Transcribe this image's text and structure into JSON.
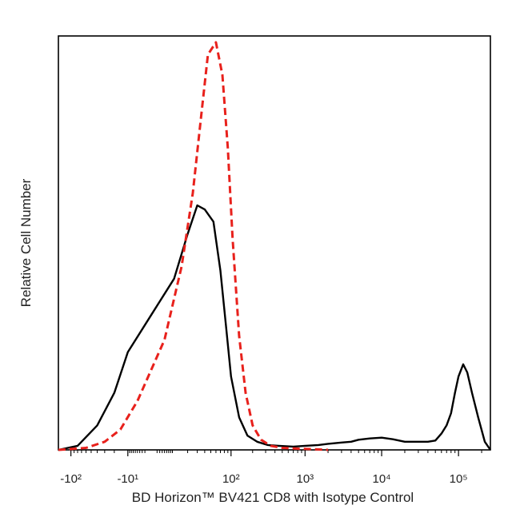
{
  "chart_data": {
    "type": "line",
    "title": "",
    "xlabel": "BD Horizon™ BV421 CD8 with Isotype Control",
    "ylabel": "Relative Cell Number",
    "x_scale": "biexponential",
    "tick_labels": [
      {
        "label": "-10²",
        "value": -100
      },
      {
        "label": "-10¹",
        "value": -10
      },
      {
        "label": "10²",
        "value": 100
      },
      {
        "label": "10³",
        "value": 1000
      },
      {
        "label": "10⁴",
        "value": 10000
      },
      {
        "label": "10⁵",
        "value": 100000
      }
    ],
    "xlim": [
      -150,
      260000
    ],
    "ylim": [
      0,
      100
    ],
    "grid": false,
    "legend": "none",
    "series": [
      {
        "color": "#000000",
        "dash": "solid",
        "x": [
          -150,
          -80,
          -40,
          -20,
          -10,
          0,
          10,
          20,
          30,
          40,
          55,
          70,
          85,
          100,
          130,
          170,
          230,
          320,
          450,
          700,
          1000,
          1500,
          2000,
          3000,
          4000,
          5000,
          7000,
          10000,
          14000,
          20000,
          30000,
          40000,
          50000,
          60000,
          70000,
          80000,
          90000,
          100000,
          115000,
          130000,
          150000,
          180000,
          220000,
          260000
        ],
        "y": [
          0,
          1,
          6,
          14,
          24,
          33,
          42,
          53,
          60,
          59,
          56,
          44,
          30,
          18,
          8,
          3.5,
          2,
          1.2,
          1,
          0.8,
          1,
          1.2,
          1.5,
          1.8,
          2,
          2.5,
          2.8,
          3,
          2.6,
          2,
          2,
          2,
          2.3,
          4,
          6,
          9,
          14,
          18,
          21,
          19,
          14,
          8,
          2,
          0
        ]
      },
      {
        "color": "#e8211c",
        "dash": "dashed",
        "x": [
          -150,
          -60,
          -30,
          -15,
          -5,
          5,
          15,
          25,
          35,
          45,
          60,
          75,
          90,
          105,
          130,
          160,
          200,
          260,
          350,
          500,
          800,
          1200,
          2000
        ],
        "y": [
          0,
          0.5,
          2,
          5,
          12,
          27,
          45,
          63,
          82,
          97,
          100,
          92,
          74,
          52,
          28,
          14,
          6,
          2.5,
          1,
          0.5,
          0.3,
          0.2,
          0
        ]
      }
    ]
  }
}
